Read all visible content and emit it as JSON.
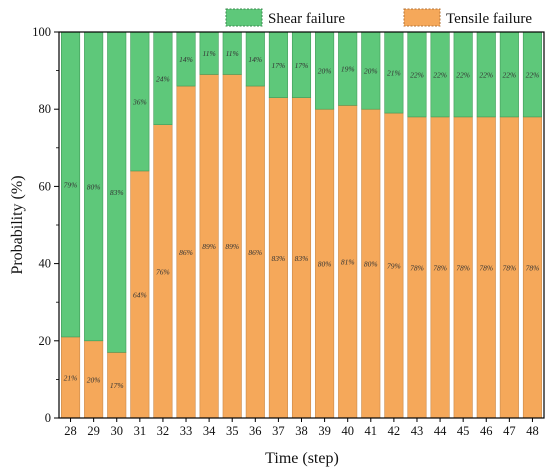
{
  "chart_data": {
    "type": "bar",
    "stacked": true,
    "xlabel": "Time (step)",
    "ylabel": "Probability (%)",
    "ylim": [
      0,
      100
    ],
    "yticks": [
      0,
      20,
      40,
      60,
      80,
      100
    ],
    "categories": [
      "28",
      "29",
      "30",
      "31",
      "32",
      "33",
      "34",
      "35",
      "36",
      "37",
      "38",
      "39",
      "40",
      "41",
      "42",
      "43",
      "44",
      "45",
      "46",
      "47",
      "48"
    ],
    "series": [
      {
        "name": "Tensile failure",
        "color": "#f5a85a",
        "values": [
          21,
          20,
          17,
          64,
          76,
          86,
          89,
          89,
          86,
          83,
          83,
          80,
          81,
          80,
          79,
          78,
          78,
          78,
          78,
          78,
          78
        ],
        "labels": [
          "21%",
          "20%",
          "17%",
          "64%",
          "76%",
          "86%",
          "89%",
          "89%",
          "86%",
          "83%",
          "83%",
          "80%",
          "81%",
          "80%",
          "79%",
          "78%",
          "78%",
          "78%",
          "78%",
          "78%",
          "78%"
        ]
      },
      {
        "name": "Shear failure",
        "color": "#5ec87a",
        "values": [
          79,
          80,
          83,
          36,
          24,
          14,
          11,
          11,
          14,
          17,
          17,
          20,
          19,
          20,
          21,
          22,
          22,
          22,
          22,
          22,
          22
        ],
        "labels": [
          "79%",
          "80%",
          "83%",
          "36%",
          "24%",
          "14%",
          "11%",
          "11%",
          "14%",
          "17%",
          "17%",
          "20%",
          "19%",
          "20%",
          "21%",
          "22%",
          "22%",
          "22%",
          "22%",
          "22%",
          "22%"
        ]
      }
    ],
    "legend_position": "top",
    "grid": false
  }
}
